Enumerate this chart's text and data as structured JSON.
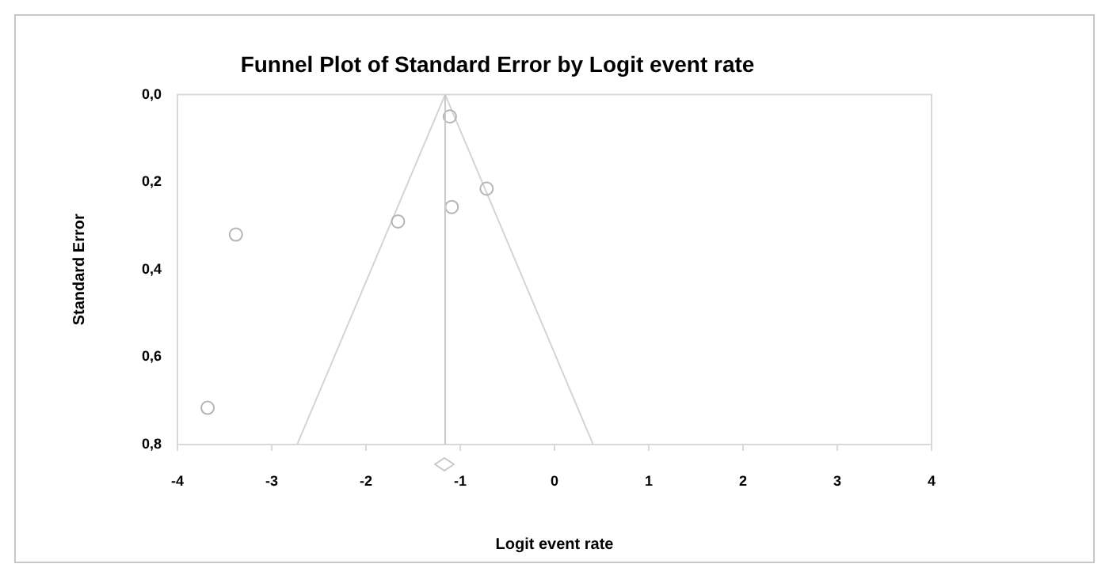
{
  "chart_data": {
    "type": "scatter",
    "title": "Funnel Plot of Standard Error by Logit event rate",
    "xlabel": "Logit event rate",
    "ylabel": "Standard Error",
    "xlim": [
      -4,
      4
    ],
    "xticks": [
      -4,
      -3,
      -2,
      -1,
      0,
      1,
      2,
      3,
      4
    ],
    "ylim": [
      0.8,
      0
    ],
    "yticks": [
      {
        "value": 0,
        "label": "0,0"
      },
      {
        "value": 0.2,
        "label": "0,2"
      },
      {
        "value": 0.4,
        "label": "0,4"
      },
      {
        "value": 0.6,
        "label": "0,6"
      },
      {
        "value": 0.8,
        "label": "0,8"
      }
    ],
    "grid": false,
    "legend": false,
    "marker": "circle",
    "series": [
      {
        "color": "#b4b4b4",
        "x": [
          -1.11,
          -0.72,
          -1.09,
          -1.66,
          -3.38,
          -3.68
        ],
        "values": [
          0.05,
          0.215,
          0.257,
          0.29,
          0.32,
          0.716
        ]
      },
      {
        "type": "line",
        "color": "#d4d4d4",
        "marker": "none",
        "x": [
          -2.73,
          -1.16,
          0.41
        ],
        "values": [
          0.8,
          0,
          0.8
        ]
      }
    ],
    "ref_lines": [
      {
        "axis": "x",
        "value": -1.16,
        "color": "#c8c8c8"
      }
    ]
  }
}
